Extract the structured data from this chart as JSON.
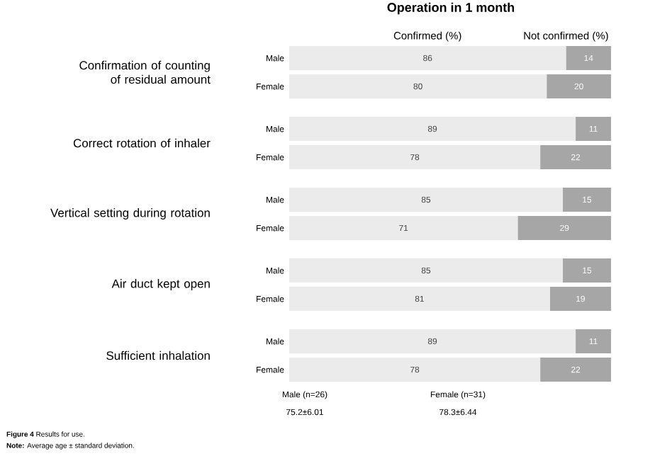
{
  "chart_data": {
    "type": "bar",
    "orientation": "horizontal",
    "stacked": true,
    "title": "Operation in 1 month",
    "categories": [
      "Male",
      "Female",
      "Male",
      "Female",
      "Male",
      "Female",
      "Male",
      "Female",
      "Male",
      "Female"
    ],
    "series": [
      {
        "name": "Confirmed (%)",
        "color": "#ebebeb",
        "values": [
          86,
          80,
          89,
          78,
          85,
          71,
          85,
          81,
          89,
          78
        ]
      },
      {
        "name": "Not confirmed (%)",
        "color": "#a6a6a6",
        "values": [
          14,
          20,
          11,
          22,
          15,
          29,
          15,
          19,
          11,
          22
        ]
      }
    ],
    "tick_labels": "y",
    "data_labels": true,
    "legend": "top",
    "annotations": [
      "Confirmation of counting of residual amount",
      "Correct rotation of inhaler",
      "Vertical setting during rotation",
      "Air duct kept open",
      "Sufficient inhalation",
      "Male (n=26)",
      "75.2±6.01",
      "Female (n=31)",
      "78.3±6.44",
      "**Figure 4** Results for use.",
      "**Note:** Average age ± standard deviation."
    ]
  }
}
